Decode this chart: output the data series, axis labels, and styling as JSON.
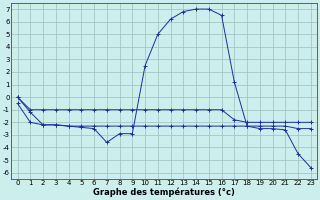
{
  "hours": [
    0,
    1,
    2,
    3,
    4,
    5,
    6,
    7,
    8,
    9,
    10,
    11,
    12,
    13,
    14,
    15,
    16,
    17,
    18,
    19,
    20,
    21,
    22,
    23
  ],
  "line1_y": [
    0,
    -1,
    -1,
    -1,
    -1,
    -1,
    -1,
    -1,
    -1,
    -1,
    -1,
    -1,
    -1,
    -1,
    -1,
    -1,
    -1,
    -1.8,
    -2,
    -2,
    -2,
    -2,
    -2,
    -2
  ],
  "line2_y": [
    -0.5,
    -2,
    -2.2,
    -2.2,
    -2.3,
    -2.3,
    -2.3,
    -2.3,
    -2.3,
    -2.3,
    -2.3,
    -2.3,
    -2.3,
    -2.3,
    -2.3,
    -2.3,
    -2.3,
    -2.3,
    -2.3,
    -2.3,
    -2.3,
    -2.3,
    -2.5,
    -2.5
  ],
  "line3_y": [
    0,
    -1.2,
    -2.2,
    -2.2,
    -2.3,
    -2.4,
    -2.5,
    -3.6,
    -2.9,
    -2.9,
    2.5,
    5.0,
    6.2,
    6.8,
    7.0,
    7.0,
    6.5,
    1.2,
    -2.3,
    -2.5,
    -2.5,
    -2.6,
    -4.5,
    -5.6
  ],
  "bg_color": "#cceeed",
  "line_color": "#1a2fa0",
  "grid_color": "#9abfbf",
  "xlabel": "Graphe des températures (°c)",
  "ylim": [
    -6.5,
    7.5
  ],
  "xlim": [
    -0.5,
    23.5
  ],
  "yticks": [
    -6,
    -5,
    -4,
    -3,
    -2,
    -1,
    0,
    1,
    2,
    3,
    4,
    5,
    6,
    7
  ],
  "xticks": [
    0,
    1,
    2,
    3,
    4,
    5,
    6,
    7,
    8,
    9,
    10,
    11,
    12,
    13,
    14,
    15,
    16,
    17,
    18,
    19,
    20,
    21,
    22,
    23
  ],
  "tick_fontsize": 5.0,
  "xlabel_fontsize": 6.0
}
